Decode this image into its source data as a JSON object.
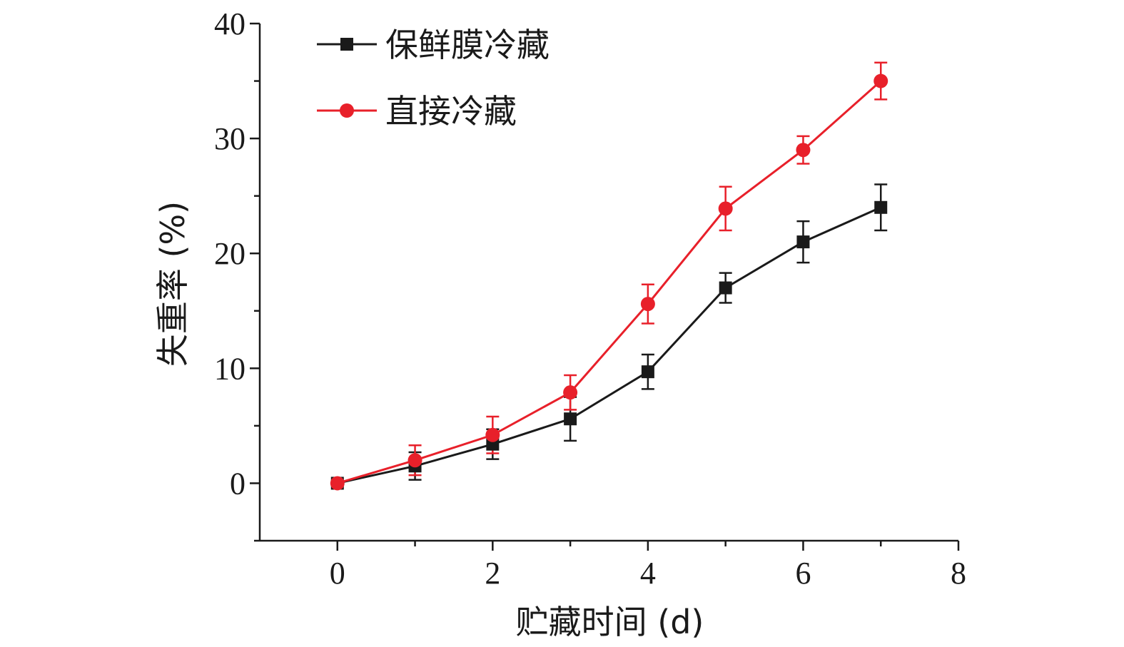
{
  "chart_data": {
    "type": "line",
    "title": "",
    "xlabel": "贮藏时间 (d)",
    "ylabel": "失重率 (%)",
    "xlim": [
      -1,
      8
    ],
    "ylim": [
      -5,
      40
    ],
    "x_ticks": [
      0,
      2,
      4,
      6,
      8
    ],
    "y_ticks": [
      0,
      10,
      20,
      30,
      40
    ],
    "grid": false,
    "legend_position": "top-left",
    "x": [
      0,
      1,
      2,
      3,
      4,
      5,
      6,
      7
    ],
    "series": [
      {
        "name": "保鲜膜冷藏",
        "color": "#1a1a1a",
        "marker": "square",
        "values": [
          0,
          1.5,
          3.4,
          5.6,
          9.7,
          17.0,
          21.0,
          24.0
        ],
        "errors": [
          0.2,
          1.2,
          1.3,
          1.9,
          1.5,
          1.3,
          1.8,
          2.0
        ]
      },
      {
        "name": "直接冷藏",
        "color": "#e8202a",
        "marker": "circle",
        "values": [
          0,
          2.0,
          4.2,
          7.9,
          15.6,
          23.9,
          29.0,
          35.0
        ],
        "errors": [
          0.2,
          1.3,
          1.6,
          1.5,
          1.7,
          1.9,
          1.2,
          1.6
        ]
      }
    ]
  }
}
